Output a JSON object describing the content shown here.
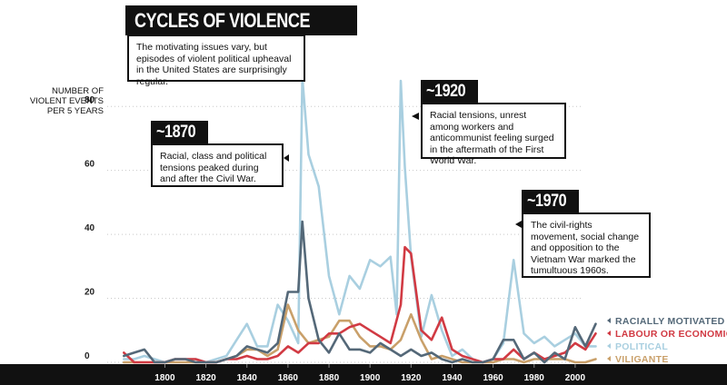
{
  "header": {
    "title": "CYCLES OF VIOLENCE",
    "subtitle": "The motivating issues vary, but episodes of violent political upheaval in the United States are surprisingly regular."
  },
  "annotations": [
    {
      "tag": "~1870",
      "text": "Racial, class and political tensions peaked during and after the Civil War."
    },
    {
      "tag": "~1920",
      "text": "Racial tensions, unrest among workers and anticommunist feeling surged in the aftermath of the First World War."
    },
    {
      "tag": "~1970",
      "text": "The civil-rights movement, social change and opposition to the Vietnam War marked the tumultuous 1960s."
    }
  ],
  "chart_data": {
    "type": "line",
    "ylabel": "NUMBER OF VIOLENT EVENTS PER 5 YEARS",
    "xlabel": "",
    "xlim": [
      1775,
      2012
    ],
    "ylim": [
      0,
      90
    ],
    "y_ticks": [
      "0",
      "20",
      "40",
      "60",
      "80"
    ],
    "x_ticks": [
      "1800",
      "1820",
      "1840",
      "1860",
      "1880",
      "1900",
      "1920",
      "1940",
      "1960",
      "1980",
      "2000"
    ],
    "grid": "dotted-horizontal",
    "legend_position": "bottom-right",
    "series": [
      {
        "name": "POLITICAL",
        "color": "#a9cfe0",
        "x": [
          1780,
          1785,
          1790,
          1795,
          1800,
          1805,
          1810,
          1815,
          1820,
          1825,
          1830,
          1835,
          1840,
          1845,
          1850,
          1855,
          1860,
          1865,
          1867,
          1870,
          1875,
          1880,
          1885,
          1890,
          1895,
          1900,
          1905,
          1910,
          1913,
          1915,
          1917,
          1920,
          1925,
          1930,
          1935,
          1940,
          1945,
          1950,
          1955,
          1960,
          1965,
          1970,
          1975,
          1980,
          1985,
          1990,
          1995,
          2000,
          2005,
          2010
        ],
        "y": [
          1,
          1,
          2,
          1,
          0,
          1,
          1,
          1,
          0,
          1,
          2,
          7,
          12,
          5,
          5,
          18,
          13,
          6,
          89,
          65,
          55,
          27,
          15,
          27,
          23,
          32,
          30,
          33,
          15,
          88,
          61,
          33,
          8,
          21,
          10,
          2,
          4,
          1,
          0,
          1,
          6,
          32,
          9,
          6,
          8,
          5,
          7,
          9,
          5,
          5
        ]
      },
      {
        "name": "RACIALLY MOTIVATED",
        "color": "#546878",
        "x": [
          1780,
          1785,
          1790,
          1795,
          1800,
          1805,
          1810,
          1815,
          1820,
          1825,
          1830,
          1835,
          1840,
          1845,
          1850,
          1855,
          1860,
          1865,
          1867,
          1870,
          1875,
          1880,
          1885,
          1890,
          1895,
          1900,
          1905,
          1910,
          1915,
          1920,
          1925,
          1930,
          1935,
          1940,
          1945,
          1950,
          1955,
          1960,
          1965,
          1970,
          1975,
          1980,
          1985,
          1990,
          1995,
          2000,
          2005,
          2010
        ],
        "y": [
          2,
          3,
          4,
          0,
          0,
          1,
          1,
          0,
          0,
          0,
          1,
          2,
          5,
          4,
          3,
          6,
          22,
          22,
          44,
          20,
          7,
          3,
          9,
          4,
          4,
          3,
          6,
          4,
          2,
          4,
          2,
          3,
          1,
          0,
          1,
          0,
          0,
          1,
          7,
          7,
          1,
          3,
          0,
          3,
          1,
          11,
          5,
          12
        ]
      },
      {
        "name": "LABOUR OR ECONOMIC",
        "color": "#d13a43",
        "x": [
          1780,
          1785,
          1790,
          1795,
          1800,
          1805,
          1810,
          1815,
          1820,
          1825,
          1830,
          1835,
          1840,
          1845,
          1850,
          1855,
          1860,
          1865,
          1870,
          1875,
          1880,
          1885,
          1890,
          1895,
          1900,
          1905,
          1910,
          1915,
          1917,
          1920,
          1925,
          1930,
          1935,
          1940,
          1945,
          1950,
          1955,
          1960,
          1965,
          1970,
          1975,
          1980,
          1985,
          1990,
          1995,
          2000,
          2005,
          2010
        ],
        "y": [
          3,
          0,
          0,
          0,
          0,
          1,
          1,
          1,
          0,
          0,
          1,
          1,
          2,
          1,
          1,
          2,
          5,
          3,
          6,
          6,
          9,
          9,
          11,
          12,
          10,
          8,
          6,
          18,
          36,
          34,
          10,
          7,
          14,
          4,
          2,
          1,
          0,
          1,
          1,
          4,
          1,
          3,
          1,
          2,
          3,
          6,
          4,
          9
        ]
      },
      {
        "name": "VILIGANTE",
        "color": "#c9a06a",
        "x": [
          1780,
          1785,
          1790,
          1795,
          1800,
          1805,
          1810,
          1815,
          1820,
          1825,
          1830,
          1835,
          1840,
          1845,
          1850,
          1855,
          1860,
          1865,
          1870,
          1875,
          1880,
          1885,
          1890,
          1895,
          1900,
          1905,
          1910,
          1915,
          1920,
          1925,
          1930,
          1935,
          1940,
          1945,
          1950,
          1955,
          1960,
          1965,
          1970,
          1975,
          1980,
          1985,
          1990,
          1995,
          2000,
          2005,
          2010
        ],
        "y": [
          0,
          0,
          0,
          0,
          0,
          0,
          0,
          0,
          0,
          0,
          1,
          2,
          4,
          4,
          2,
          4,
          18,
          10,
          6,
          7,
          8,
          13,
          13,
          8,
          5,
          5,
          4,
          7,
          15,
          7,
          1,
          2,
          1,
          0,
          0,
          0,
          0,
          1,
          1,
          0,
          1,
          1,
          1,
          1,
          0,
          0,
          1
        ]
      }
    ]
  },
  "legend": [
    {
      "label": "RACIALLY MOTIVATED",
      "color": "#546878"
    },
    {
      "label": "LABOUR OR ECONOMIC",
      "color": "#d13a43"
    },
    {
      "label": "POLITICAL",
      "color": "#a9cfe0"
    },
    {
      "label": "VILIGANTE",
      "color": "#c9a06a"
    }
  ]
}
